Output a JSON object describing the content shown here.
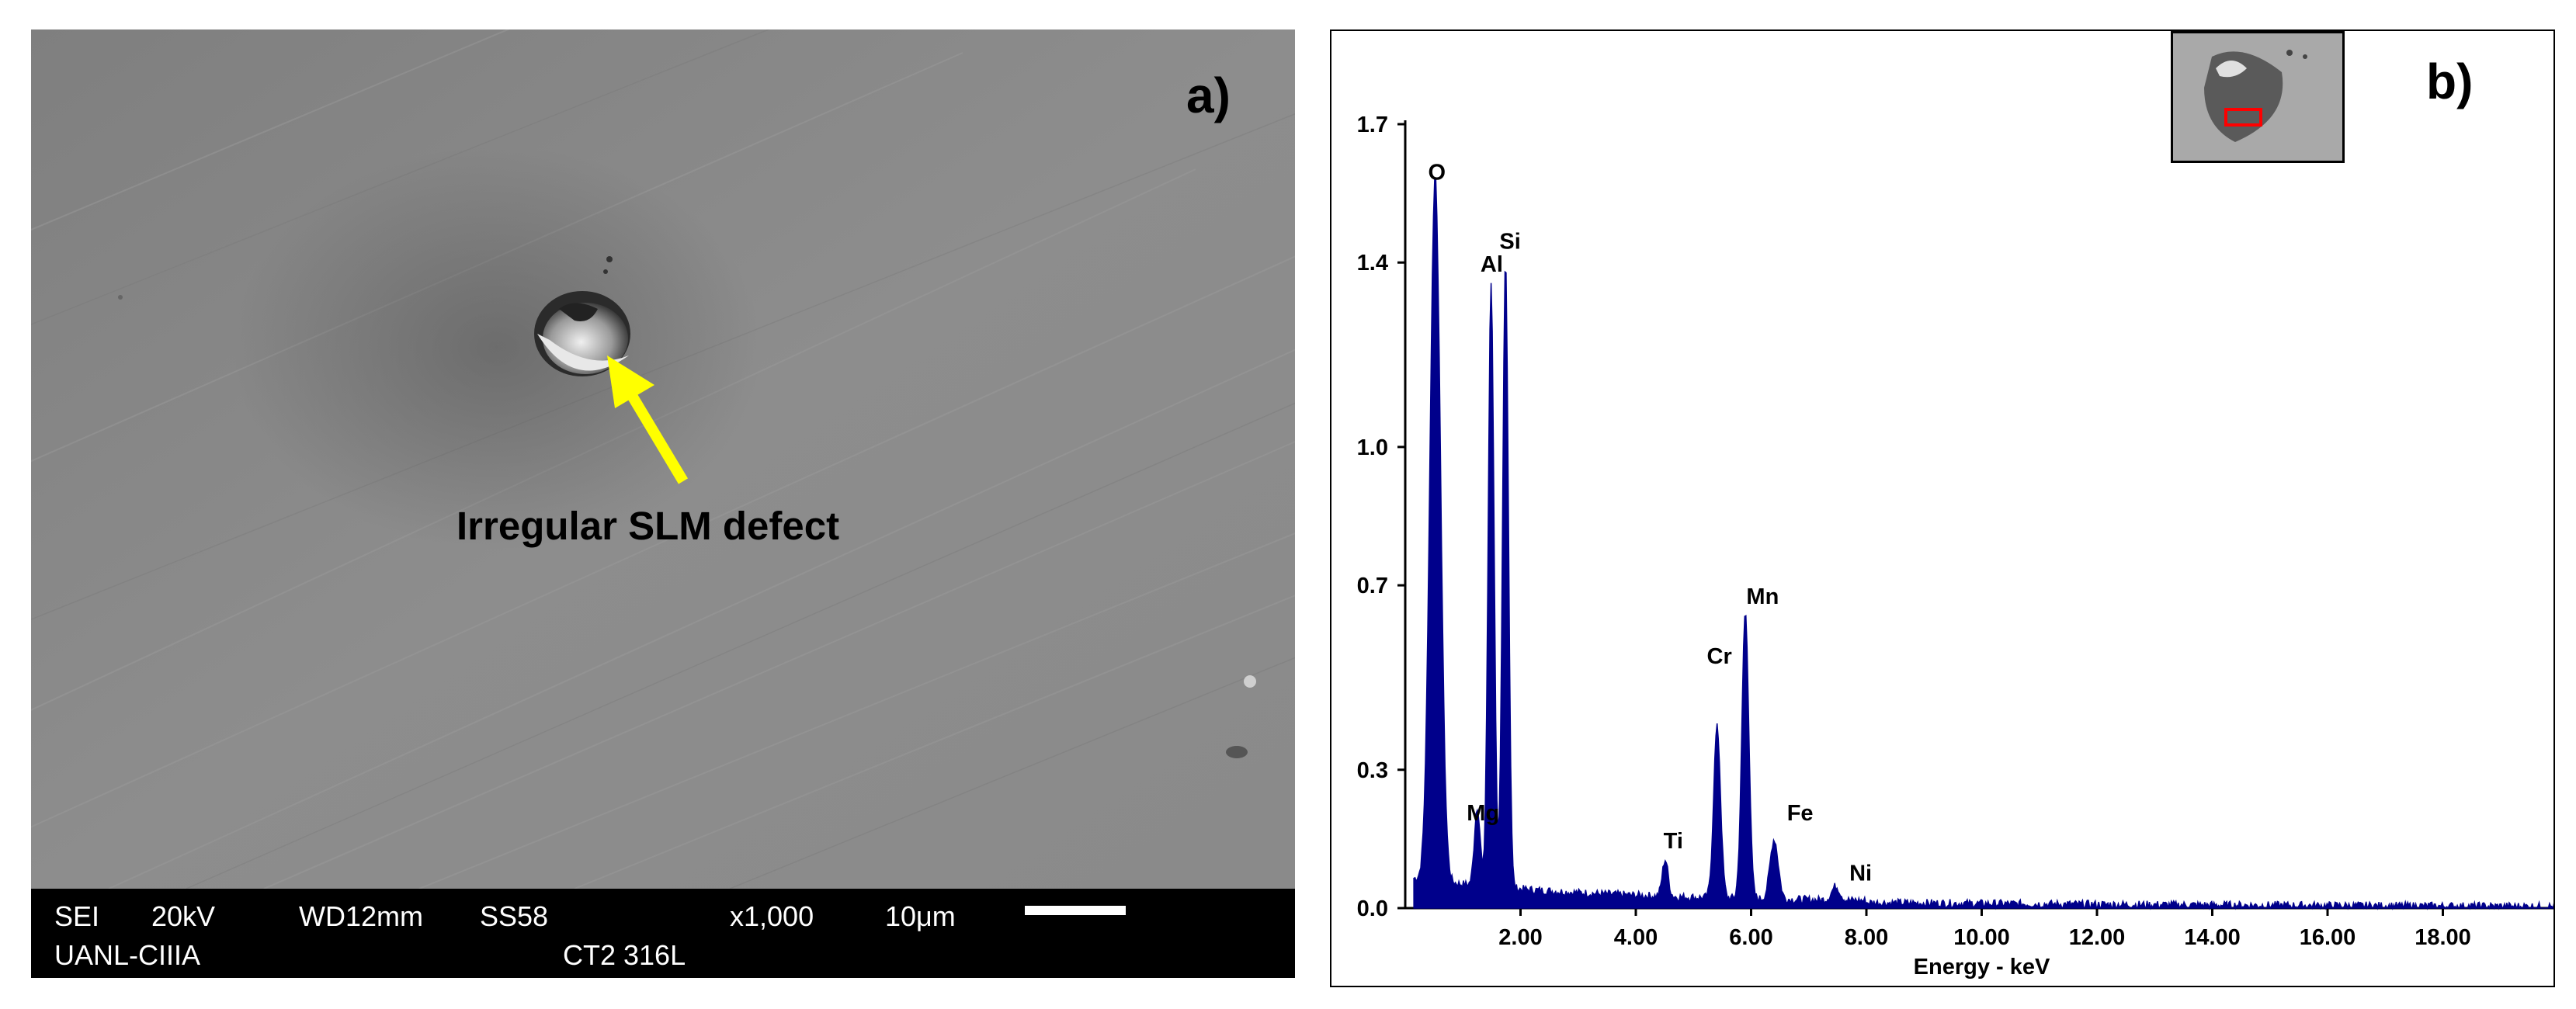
{
  "panel_a": {
    "label": "a)",
    "annotation": "Irregular SLM defect",
    "info_bar": {
      "mode": "SEI",
      "voltage": "20kV",
      "working_distance": "WD12mm",
      "spot_size": "SS58",
      "magnification": "x1,000",
      "scale": "10μm",
      "institution": "UANL-CIIIA",
      "sample": "CT2 316L"
    },
    "colors": {
      "arrow": "#ffff00",
      "background": "#8c8c8c"
    }
  },
  "panel_b": {
    "label": "b)",
    "chart_data": {
      "type": "line",
      "xlabel": "Energy - keV",
      "ylabel": "",
      "xlim": [
        0,
        20.0
      ],
      "ylim": [
        0,
        1.7
      ],
      "x_ticks": [
        2.0,
        4.0,
        6.0,
        8.0,
        10.0,
        12.0,
        14.0,
        16.0,
        18.0
      ],
      "x_tick_labels": [
        "2.00",
        "4.00",
        "6.00",
        "8.00",
        "10.00",
        "12.00",
        "14.00",
        "16.00",
        "18.00"
      ],
      "y_ticks": [
        0.0,
        0.3,
        0.7,
        1.0,
        1.4,
        1.7
      ],
      "y_tick_labels": [
        "0.0",
        "0.3",
        "0.7",
        "1.0",
        "1.4",
        "1.7"
      ],
      "peaks": [
        {
          "element": "O",
          "energy": 0.52,
          "intensity": 1.53,
          "width": 0.09
        },
        {
          "element": "Mg",
          "energy": 1.25,
          "intensity": 0.17,
          "width": 0.05
        },
        {
          "element": "Al",
          "energy": 1.49,
          "intensity": 1.31,
          "width": 0.05
        },
        {
          "element": "Si",
          "energy": 1.74,
          "intensity": 1.36,
          "width": 0.05
        },
        {
          "element": "Ti",
          "energy": 4.51,
          "intensity": 0.08,
          "width": 0.05
        },
        {
          "element": "Cr",
          "energy": 5.41,
          "intensity": 0.37,
          "width": 0.06
        },
        {
          "element": "Mn",
          "energy": 5.9,
          "intensity": 0.62,
          "width": 0.06
        },
        {
          "element": "Fe",
          "energy": 6.4,
          "intensity": 0.13,
          "width": 0.07
        },
        {
          "element": "Ni",
          "energy": 7.47,
          "intensity": 0.03,
          "width": 0.07
        }
      ],
      "peak_labels": [
        {
          "text": "O",
          "energy": 0.55,
          "intensity": 1.58
        },
        {
          "text": "Si",
          "energy": 1.82,
          "intensity": 1.43
        },
        {
          "text": "Al",
          "energy": 1.5,
          "intensity": 1.38
        },
        {
          "text": "Mn",
          "energy": 6.2,
          "intensity": 0.66
        },
        {
          "text": "Cr",
          "energy": 5.45,
          "intensity": 0.53
        },
        {
          "text": "Mg",
          "energy": 1.35,
          "intensity": 0.19
        },
        {
          "text": "Ti",
          "energy": 4.65,
          "intensity": 0.13
        },
        {
          "text": "Fe",
          "energy": 6.85,
          "intensity": 0.19
        },
        {
          "text": "Ni",
          "energy": 7.9,
          "intensity": 0.06
        }
      ],
      "line_color": "#00008b",
      "grid": false
    },
    "inset_colors": {
      "image": "#a9a9a9",
      "selection": "#ff0000"
    }
  }
}
